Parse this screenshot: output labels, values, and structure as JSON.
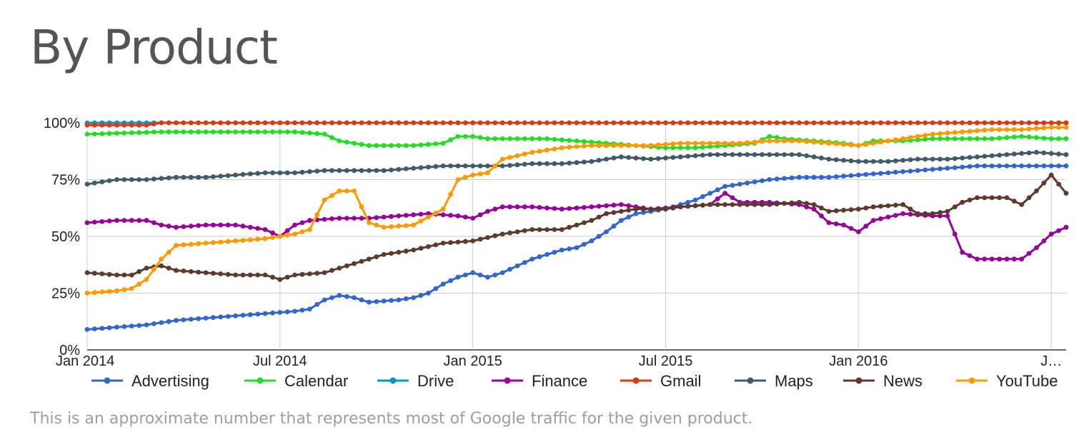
{
  "title": "By Product",
  "note": "This is an approximate number that represents most of Google traffic for the given product.",
  "chart_data": {
    "type": "line",
    "ylim": [
      0,
      100
    ],
    "yticks": [
      "0%",
      "25%",
      "50%",
      "75%",
      "100%"
    ],
    "x_start": "Jan 2014",
    "x_end": "Jun 2016",
    "xticks": [
      {
        "label": "Jan 2014",
        "week": 0
      },
      {
        "label": "Jul 2014",
        "week": 26
      },
      {
        "label": "Jan 2015",
        "week": 52
      },
      {
        "label": "Jul 2015",
        "week": 78
      },
      {
        "label": "Jan 2016",
        "week": 104
      },
      {
        "label": "J…",
        "week": 130
      }
    ],
    "x_min": 0,
    "x_max": 132,
    "series": [
      {
        "name": "Advertising",
        "color": "#3366cc",
        "points": [
          [
            0,
            9
          ],
          [
            4,
            10
          ],
          [
            8,
            11
          ],
          [
            12,
            13
          ],
          [
            16,
            14
          ],
          [
            20,
            15
          ],
          [
            24,
            16
          ],
          [
            28,
            17
          ],
          [
            30,
            18
          ],
          [
            32,
            22
          ],
          [
            34,
            24
          ],
          [
            36,
            23
          ],
          [
            38,
            21
          ],
          [
            42,
            22
          ],
          [
            44,
            23
          ],
          [
            46,
            25
          ],
          [
            48,
            29
          ],
          [
            50,
            32
          ],
          [
            52,
            34
          ],
          [
            54,
            32
          ],
          [
            56,
            34
          ],
          [
            60,
            40
          ],
          [
            64,
            44
          ],
          [
            66,
            45
          ],
          [
            68,
            48
          ],
          [
            70,
            52
          ],
          [
            72,
            57
          ],
          [
            74,
            60
          ],
          [
            76,
            61
          ],
          [
            78,
            62
          ],
          [
            80,
            64
          ],
          [
            82,
            66
          ],
          [
            84,
            69
          ],
          [
            86,
            72
          ],
          [
            88,
            73
          ],
          [
            92,
            75
          ],
          [
            96,
            76
          ],
          [
            100,
            76
          ],
          [
            104,
            77
          ],
          [
            108,
            78
          ],
          [
            112,
            79
          ],
          [
            116,
            80
          ],
          [
            120,
            81
          ],
          [
            124,
            81
          ],
          [
            128,
            81
          ],
          [
            132,
            81
          ]
        ]
      },
      {
        "name": "Calendar",
        "color": "#22dd22",
        "points": [
          [
            0,
            95
          ],
          [
            10,
            96
          ],
          [
            20,
            96
          ],
          [
            28,
            96
          ],
          [
            32,
            95
          ],
          [
            34,
            92
          ],
          [
            36,
            91
          ],
          [
            38,
            90
          ],
          [
            44,
            90
          ],
          [
            48,
            91
          ],
          [
            50,
            94
          ],
          [
            52,
            94
          ],
          [
            54,
            93
          ],
          [
            58,
            93
          ],
          [
            62,
            93
          ],
          [
            66,
            92
          ],
          [
            70,
            91
          ],
          [
            74,
            90
          ],
          [
            78,
            89
          ],
          [
            82,
            89
          ],
          [
            86,
            90
          ],
          [
            90,
            91
          ],
          [
            92,
            94
          ],
          [
            94,
            93
          ],
          [
            98,
            92
          ],
          [
            102,
            91
          ],
          [
            104,
            90
          ],
          [
            106,
            92
          ],
          [
            110,
            92
          ],
          [
            114,
            93
          ],
          [
            118,
            93
          ],
          [
            122,
            93
          ],
          [
            126,
            94
          ],
          [
            130,
            93
          ],
          [
            132,
            93
          ]
        ]
      },
      {
        "name": "Drive",
        "color": "#0099c6",
        "points": [
          [
            0,
            100
          ],
          [
            4,
            100
          ],
          [
            8,
            100
          ],
          [
            10,
            100
          ],
          [
            12,
            100
          ],
          [
            16,
            100
          ],
          [
            20,
            100
          ],
          [
            30,
            100
          ],
          [
            40,
            100
          ],
          [
            60,
            100
          ],
          [
            80,
            100
          ],
          [
            100,
            100
          ],
          [
            120,
            100
          ],
          [
            132,
            100
          ]
        ]
      },
      {
        "name": "Finance",
        "color": "#990099",
        "points": [
          [
            0,
            56
          ],
          [
            4,
            57
          ],
          [
            8,
            57
          ],
          [
            10,
            55
          ],
          [
            12,
            54
          ],
          [
            16,
            55
          ],
          [
            20,
            55
          ],
          [
            22,
            54
          ],
          [
            24,
            53
          ],
          [
            26,
            50
          ],
          [
            28,
            55
          ],
          [
            30,
            57
          ],
          [
            34,
            58
          ],
          [
            38,
            58
          ],
          [
            42,
            59
          ],
          [
            46,
            60
          ],
          [
            50,
            59
          ],
          [
            52,
            58
          ],
          [
            54,
            61
          ],
          [
            56,
            63
          ],
          [
            60,
            63
          ],
          [
            64,
            62
          ],
          [
            68,
            63
          ],
          [
            72,
            64
          ],
          [
            76,
            62
          ],
          [
            80,
            63
          ],
          [
            84,
            64
          ],
          [
            86,
            69
          ],
          [
            88,
            65
          ],
          [
            92,
            65
          ],
          [
            96,
            64
          ],
          [
            98,
            62
          ],
          [
            100,
            56
          ],
          [
            102,
            55
          ],
          [
            104,
            52
          ],
          [
            106,
            57
          ],
          [
            110,
            60
          ],
          [
            114,
            59
          ],
          [
            116,
            59
          ],
          [
            118,
            43
          ],
          [
            120,
            40
          ],
          [
            124,
            40
          ],
          [
            126,
            40
          ],
          [
            128,
            45
          ],
          [
            130,
            51
          ],
          [
            132,
            54
          ]
        ]
      },
      {
        "name": "Gmail",
        "color": "#dc3912",
        "points": [
          [
            0,
            99
          ],
          [
            4,
            99
          ],
          [
            8,
            99
          ],
          [
            10,
            100
          ],
          [
            20,
            100
          ],
          [
            40,
            100
          ],
          [
            60,
            100
          ],
          [
            80,
            100
          ],
          [
            100,
            100
          ],
          [
            120,
            100
          ],
          [
            132,
            100
          ]
        ]
      },
      {
        "name": "Maps",
        "color": "#425a68",
        "points": [
          [
            0,
            73
          ],
          [
            4,
            75
          ],
          [
            8,
            75
          ],
          [
            12,
            76
          ],
          [
            16,
            76
          ],
          [
            20,
            77
          ],
          [
            24,
            78
          ],
          [
            28,
            78
          ],
          [
            32,
            79
          ],
          [
            36,
            79
          ],
          [
            40,
            79
          ],
          [
            44,
            80
          ],
          [
            48,
            81
          ],
          [
            52,
            81
          ],
          [
            56,
            81
          ],
          [
            60,
            82
          ],
          [
            64,
            82
          ],
          [
            68,
            83
          ],
          [
            72,
            85
          ],
          [
            76,
            84
          ],
          [
            80,
            85
          ],
          [
            84,
            86
          ],
          [
            88,
            86
          ],
          [
            92,
            86
          ],
          [
            96,
            86
          ],
          [
            98,
            85
          ],
          [
            100,
            84
          ],
          [
            104,
            83
          ],
          [
            108,
            83
          ],
          [
            112,
            84
          ],
          [
            116,
            84
          ],
          [
            120,
            85
          ],
          [
            124,
            86
          ],
          [
            128,
            87
          ],
          [
            132,
            86
          ]
        ]
      },
      {
        "name": "News",
        "color": "#5e3a2e",
        "points": [
          [
            0,
            34
          ],
          [
            4,
            33
          ],
          [
            6,
            33
          ],
          [
            8,
            36
          ],
          [
            10,
            37
          ],
          [
            12,
            35
          ],
          [
            16,
            34
          ],
          [
            20,
            33
          ],
          [
            24,
            33
          ],
          [
            26,
            31
          ],
          [
            28,
            33
          ],
          [
            32,
            34
          ],
          [
            36,
            38
          ],
          [
            40,
            42
          ],
          [
            44,
            44
          ],
          [
            48,
            47
          ],
          [
            52,
            48
          ],
          [
            56,
            51
          ],
          [
            60,
            53
          ],
          [
            64,
            53
          ],
          [
            68,
            57
          ],
          [
            70,
            60
          ],
          [
            74,
            62
          ],
          [
            78,
            62
          ],
          [
            80,
            63
          ],
          [
            84,
            64
          ],
          [
            88,
            64
          ],
          [
            92,
            64
          ],
          [
            96,
            65
          ],
          [
            98,
            64
          ],
          [
            100,
            61
          ],
          [
            104,
            62
          ],
          [
            106,
            63
          ],
          [
            110,
            64
          ],
          [
            112,
            60
          ],
          [
            114,
            60
          ],
          [
            116,
            61
          ],
          [
            118,
            65
          ],
          [
            120,
            67
          ],
          [
            124,
            67
          ],
          [
            126,
            64
          ],
          [
            128,
            70
          ],
          [
            130,
            77
          ],
          [
            132,
            69
          ]
        ]
      },
      {
        "name": "YouTube",
        "color": "#ff9900",
        "points": [
          [
            0,
            25
          ],
          [
            4,
            26
          ],
          [
            6,
            27
          ],
          [
            8,
            31
          ],
          [
            10,
            40
          ],
          [
            12,
            46
          ],
          [
            16,
            47
          ],
          [
            20,
            48
          ],
          [
            24,
            49
          ],
          [
            28,
            51
          ],
          [
            30,
            53
          ],
          [
            32,
            66
          ],
          [
            34,
            70
          ],
          [
            36,
            70
          ],
          [
            38,
            56
          ],
          [
            40,
            54
          ],
          [
            44,
            55
          ],
          [
            48,
            62
          ],
          [
            50,
            75
          ],
          [
            52,
            77
          ],
          [
            54,
            78
          ],
          [
            56,
            84
          ],
          [
            60,
            87
          ],
          [
            64,
            89
          ],
          [
            68,
            90
          ],
          [
            72,
            90
          ],
          [
            76,
            90
          ],
          [
            80,
            91
          ],
          [
            84,
            91
          ],
          [
            88,
            91
          ],
          [
            92,
            92
          ],
          [
            96,
            92
          ],
          [
            100,
            91
          ],
          [
            104,
            90
          ],
          [
            106,
            91
          ],
          [
            110,
            93
          ],
          [
            114,
            95
          ],
          [
            118,
            96
          ],
          [
            122,
            97
          ],
          [
            126,
            97
          ],
          [
            130,
            98
          ],
          [
            132,
            98
          ]
        ]
      }
    ]
  }
}
